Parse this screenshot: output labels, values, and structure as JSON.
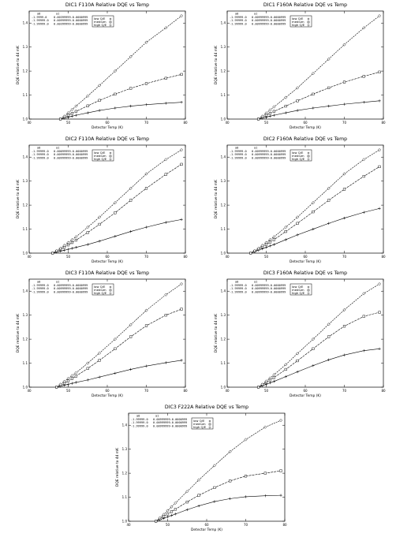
{
  "chart_data": [
    {
      "type": "scatter",
      "title": "DIC1 F110A Relative DQE vs Temp",
      "xlabel": "Detector Temp (K)",
      "ylabel": "DQE relative to 44 mK",
      "xlim": [
        40,
        80
      ],
      "ylim": [
        1.0,
        1.45
      ],
      "xticks": [
        "40",
        "50",
        "60",
        "70",
        "80"
      ],
      "yticks": [
        "1.0",
        "1.1",
        "1.2",
        "1.3",
        "1.4"
      ],
      "grid": false,
      "legend_position": "top",
      "table_headers": [
        "a0",
        "a1"
      ],
      "coef_rows": [
        [
          "-1.9999.0",
          "0.00399999-0.0000999",
          "low Q/E"
        ],
        [
          "-1.99999.0",
          "0.00999999-0.0000999",
          "medium"
        ],
        [
          "-1.99999.0",
          "0.00399999-0.0000999",
          "high Q/E"
        ]
      ],
      "series": [
        {
          "name": "low Q/E",
          "marker": "plus",
          "x": [
            48,
            49,
            50,
            51,
            52,
            55,
            58,
            62,
            66,
            70,
            75,
            79
          ],
          "y": [
            1.0,
            1.004,
            1.008,
            1.012,
            1.016,
            1.026,
            1.036,
            1.046,
            1.054,
            1.06,
            1.066,
            1.07
          ]
        },
        {
          "name": "medium",
          "marker": "square",
          "x": [
            48,
            49,
            50,
            51,
            52,
            55,
            58,
            62,
            66,
            70,
            75,
            79
          ],
          "y": [
            1.0,
            1.008,
            1.016,
            1.024,
            1.032,
            1.055,
            1.078,
            1.104,
            1.128,
            1.148,
            1.17,
            1.186
          ]
        },
        {
          "name": "high Q/E",
          "marker": "diamond",
          "x": [
            48,
            49,
            50,
            51,
            52,
            55,
            58,
            62,
            66,
            70,
            75,
            79
          ],
          "y": [
            1.0,
            1.012,
            1.026,
            1.04,
            1.054,
            1.096,
            1.14,
            1.2,
            1.26,
            1.32,
            1.38,
            1.43
          ]
        }
      ]
    },
    {
      "type": "scatter",
      "title": "DIC1 F160A Relative DQE vs Temp",
      "xlabel": "Detector Temp (K)",
      "ylabel": "DQE relative to 44 mK",
      "xlim": [
        40,
        80
      ],
      "ylim": [
        1.0,
        1.45
      ],
      "xticks": [
        "40",
        "50",
        "60",
        "70",
        "80"
      ],
      "yticks": [
        "1.0",
        "1.1",
        "1.2",
        "1.3",
        "1.4"
      ],
      "grid": false,
      "legend_position": "top",
      "table_headers": [
        "a0",
        "a1"
      ],
      "coef_rows": [
        [
          "-1.99999.0",
          "0.00999999-0.0000999",
          "low Q/E"
        ],
        [
          "-1.99999.0",
          "0.00999999-0.0000999",
          "medium"
        ],
        [
          "-1.99999.0",
          "0.00999999-0.0000999",
          "high Q/E"
        ]
      ],
      "series": [
        {
          "name": "low Q/E",
          "marker": "plus",
          "x": [
            48,
            49,
            50,
            51,
            52,
            55,
            58,
            62,
            66,
            70,
            75,
            79
          ],
          "y": [
            1.0,
            1.004,
            1.008,
            1.012,
            1.016,
            1.026,
            1.036,
            1.046,
            1.054,
            1.062,
            1.07,
            1.076
          ]
        },
        {
          "name": "medium",
          "marker": "square",
          "x": [
            48,
            49,
            50,
            51,
            52,
            55,
            58,
            62,
            66,
            70,
            75,
            79
          ],
          "y": [
            1.0,
            1.008,
            1.016,
            1.024,
            1.032,
            1.054,
            1.076,
            1.104,
            1.13,
            1.154,
            1.178,
            1.196
          ]
        },
        {
          "name": "high Q/E",
          "marker": "diamond",
          "x": [
            48,
            49,
            50,
            51,
            52,
            55,
            58,
            62,
            66,
            70,
            75,
            79
          ],
          "y": [
            1.0,
            1.012,
            1.025,
            1.038,
            1.051,
            1.09,
            1.13,
            1.19,
            1.25,
            1.31,
            1.38,
            1.43
          ]
        }
      ]
    },
    {
      "type": "scatter",
      "title": "DIC2 F110A Relative DQE vs Temp",
      "xlabel": "Detector Temp (K)",
      "ylabel": "DQE relative to 44 mK",
      "xlim": [
        40,
        80
      ],
      "ylim": [
        1.0,
        1.45
      ],
      "xticks": [
        "40",
        "50",
        "60",
        "70",
        "80"
      ],
      "yticks": [
        "1.0",
        "1.1",
        "1.2",
        "1.3",
        "1.4"
      ],
      "grid": false,
      "legend_position": "top",
      "table_headers": [
        "a0",
        "a1"
      ],
      "coef_rows": [
        [
          "-1.99999.0",
          "0.00099999-0.0000999",
          "low Q/E"
        ],
        [
          "-1.99999.0",
          "0.00999999-0.0000999",
          "medium"
        ],
        [
          "-1.99999.0",
          "0.00999999-0.0000999",
          "high Q/E"
        ]
      ],
      "series": [
        {
          "name": "low Q/E",
          "marker": "plus",
          "x": [
            46,
            47,
            48,
            49,
            50,
            51,
            52,
            55,
            58,
            62,
            66,
            70,
            75,
            79
          ],
          "y": [
            1.0,
            1.004,
            1.008,
            1.012,
            1.016,
            1.02,
            1.024,
            1.036,
            1.05,
            1.07,
            1.09,
            1.108,
            1.128,
            1.14
          ]
        },
        {
          "name": "medium",
          "marker": "square",
          "x": [
            46,
            47,
            48,
            49,
            50,
            51,
            52,
            55,
            58,
            62,
            66,
            70,
            75,
            79
          ],
          "y": [
            1.0,
            1.008,
            1.016,
            1.024,
            1.034,
            1.044,
            1.054,
            1.086,
            1.12,
            1.168,
            1.22,
            1.27,
            1.328,
            1.37
          ]
        },
        {
          "name": "high Q/E",
          "marker": "diamond",
          "x": [
            46,
            47,
            48,
            49,
            50,
            51,
            52,
            55,
            58,
            62,
            66,
            70,
            75,
            79
          ],
          "y": [
            1.0,
            1.01,
            1.02,
            1.032,
            1.044,
            1.056,
            1.068,
            1.108,
            1.15,
            1.21,
            1.27,
            1.33,
            1.39,
            1.43
          ]
        }
      ]
    },
    {
      "type": "scatter",
      "title": "DIC2 F160A Relative DQE vs Temp",
      "xlabel": "Detector Temp (K)",
      "ylabel": "DQE relative to 44 mK",
      "xlim": [
        40,
        80
      ],
      "ylim": [
        1.0,
        1.45
      ],
      "xticks": [
        "40",
        "50",
        "60",
        "70",
        "80"
      ],
      "yticks": [
        "1.0",
        "1.1",
        "1.2",
        "1.3",
        "1.4"
      ],
      "grid": false,
      "legend_position": "top",
      "table_headers": [
        "a0",
        "a1"
      ],
      "coef_rows": [
        [
          "-1.99999.0",
          "0.00999999-0.0000999",
          "low Q/E"
        ],
        [
          "-1.99999.0",
          "0.00999999-0.0000999",
          "medium"
        ],
        [
          "-1.99999.0",
          "0.00999999-0.0000999",
          "high Q/E"
        ]
      ],
      "series": [
        {
          "name": "low Q/E",
          "marker": "plus",
          "x": [
            46,
            47,
            48,
            49,
            50,
            51,
            52,
            55,
            58,
            62,
            66,
            70,
            75,
            79
          ],
          "y": [
            1.0,
            1.006,
            1.012,
            1.018,
            1.024,
            1.03,
            1.036,
            1.056,
            1.076,
            1.1,
            1.124,
            1.146,
            1.17,
            1.186
          ]
        },
        {
          "name": "medium",
          "marker": "square",
          "x": [
            46,
            47,
            48,
            49,
            50,
            51,
            52,
            55,
            58,
            62,
            66,
            70,
            75,
            79
          ],
          "y": [
            1.0,
            1.008,
            1.016,
            1.026,
            1.036,
            1.046,
            1.056,
            1.09,
            1.124,
            1.172,
            1.22,
            1.266,
            1.32,
            1.36
          ]
        },
        {
          "name": "high Q/E",
          "marker": "diamond",
          "x": [
            46,
            47,
            48,
            49,
            50,
            51,
            52,
            55,
            58,
            62,
            66,
            70,
            75,
            79
          ],
          "y": [
            1.0,
            1.01,
            1.02,
            1.032,
            1.044,
            1.056,
            1.068,
            1.108,
            1.15,
            1.21,
            1.27,
            1.33,
            1.39,
            1.43
          ]
        }
      ]
    },
    {
      "type": "scatter",
      "title": "DIC3 F110A Relative DQE vs Temp",
      "xlabel": "Detector Temp (K)",
      "ylabel": "DQE relative to 44 mK",
      "xlim": [
        40,
        80
      ],
      "ylim": [
        1.0,
        1.45
      ],
      "xticks": [
        "40",
        "50",
        "60",
        "70",
        "80"
      ],
      "yticks": [
        "1.0",
        "1.1",
        "1.2",
        "1.3",
        "1.4"
      ],
      "grid": false,
      "legend_position": "top",
      "table_headers": [
        "a0",
        "a1"
      ],
      "coef_rows": [
        [
          "-1.99999.0",
          "0.00999999-0.0000999",
          "low Q/E"
        ],
        [
          "-1.99999.0",
          "0.00999999-0.0000999",
          "medium"
        ],
        [
          "-1.99999.0",
          "0.00999999-0.0000999",
          "high Q/E"
        ]
      ],
      "series": [
        {
          "name": "low Q/E",
          "marker": "plus",
          "x": [
            47,
            48,
            49,
            50,
            51,
            52,
            55,
            58,
            62,
            66,
            70,
            75,
            79
          ],
          "y": [
            1.0,
            1.004,
            1.008,
            1.012,
            1.016,
            1.02,
            1.03,
            1.042,
            1.058,
            1.074,
            1.088,
            1.102,
            1.112
          ]
        },
        {
          "name": "medium",
          "marker": "square",
          "x": [
            47,
            48,
            49,
            50,
            51,
            52,
            55,
            58,
            62,
            66,
            70,
            75,
            79
          ],
          "y": [
            1.0,
            1.008,
            1.016,
            1.026,
            1.036,
            1.046,
            1.078,
            1.112,
            1.16,
            1.21,
            1.256,
            1.3,
            1.325
          ]
        },
        {
          "name": "high Q/E",
          "marker": "diamond",
          "x": [
            47,
            48,
            49,
            50,
            51,
            52,
            55,
            58,
            62,
            66,
            70,
            75,
            79
          ],
          "y": [
            1.0,
            1.012,
            1.024,
            1.036,
            1.048,
            1.06,
            1.1,
            1.142,
            1.2,
            1.26,
            1.32,
            1.385,
            1.43
          ]
        }
      ]
    },
    {
      "type": "scatter",
      "title": "DIC3 F160A Relative DQE vs Temp",
      "xlabel": "Detector Temp (K)",
      "ylabel": "DQE relative to 44 mK",
      "xlim": [
        40,
        80
      ],
      "ylim": [
        1.0,
        1.45
      ],
      "xticks": [
        "40",
        "50",
        "60",
        "70",
        "80"
      ],
      "yticks": [
        "1.0",
        "1.1",
        "1.2",
        "1.3",
        "1.4"
      ],
      "grid": false,
      "legend_position": "top",
      "table_headers": [
        "a0",
        "a1"
      ],
      "coef_rows": [
        [
          "-1.99999.0",
          "0.00999999-0.0000999",
          "low Q/E"
        ],
        [
          "-1.99999.0",
          "0.00999999-0.0000999",
          "medium"
        ],
        [
          "-1.99999.0",
          "0.00999999-0.0000999",
          "high Q/E"
        ]
      ],
      "series": [
        {
          "name": "low Q/E",
          "marker": "plus",
          "x": [
            48,
            49,
            50,
            51,
            52,
            55,
            58,
            62,
            66,
            70,
            75,
            79
          ],
          "y": [
            1.0,
            1.006,
            1.012,
            1.018,
            1.024,
            1.044,
            1.064,
            1.09,
            1.114,
            1.134,
            1.152,
            1.16
          ]
        },
        {
          "name": "medium",
          "marker": "square",
          "x": [
            48,
            49,
            50,
            51,
            52,
            55,
            58,
            62,
            66,
            70,
            75,
            79
          ],
          "y": [
            1.0,
            1.01,
            1.02,
            1.03,
            1.04,
            1.074,
            1.11,
            1.16,
            1.21,
            1.254,
            1.295,
            1.312
          ]
        },
        {
          "name": "high Q/E",
          "marker": "diamond",
          "x": [
            48,
            49,
            50,
            51,
            52,
            55,
            58,
            62,
            66,
            70,
            75,
            79
          ],
          "y": [
            1.0,
            1.012,
            1.025,
            1.038,
            1.052,
            1.094,
            1.14,
            1.2,
            1.262,
            1.322,
            1.39,
            1.43
          ]
        }
      ]
    },
    {
      "type": "scatter",
      "title": "DIC3 F222A Relative DQE vs Temp",
      "xlabel": "Detector Temp (K)",
      "ylabel": "DQE relative to 44 mK",
      "xlim": [
        40,
        80
      ],
      "ylim": [
        1.0,
        1.45
      ],
      "xticks": [
        "40",
        "50",
        "60",
        "70",
        "80"
      ],
      "yticks": [
        "1.0",
        "1.1",
        "1.2",
        "1.3",
        "1.4"
      ],
      "grid": false,
      "legend_position": "top",
      "table_headers": [
        "a0",
        "a1"
      ],
      "coef_rows": [
        [
          "-1.99999.0",
          "0.00999999-0.0000999",
          "low Q/E"
        ],
        [
          "-1.99999.0",
          "0.00999999-0.0000999",
          "medium"
        ],
        [
          "-1.99999.0",
          "0.00999999-0.0000999",
          "high Q/E"
        ]
      ],
      "series": [
        {
          "name": "low Q/E",
          "marker": "plus",
          "x": [
            47,
            48,
            49,
            50,
            51,
            52,
            55,
            58,
            62,
            66,
            70,
            75,
            79
          ],
          "y": [
            1.0,
            1.006,
            1.012,
            1.018,
            1.024,
            1.03,
            1.048,
            1.064,
            1.082,
            1.094,
            1.102,
            1.106,
            1.108
          ]
        },
        {
          "name": "medium",
          "marker": "square",
          "x": [
            47,
            48,
            49,
            50,
            51,
            52,
            55,
            58,
            62,
            66,
            70,
            75,
            79
          ],
          "y": [
            1.0,
            1.01,
            1.02,
            1.03,
            1.04,
            1.05,
            1.08,
            1.108,
            1.14,
            1.168,
            1.188,
            1.2,
            1.21
          ]
        },
        {
          "name": "high Q/E",
          "marker": "diamond",
          "x": [
            47,
            48,
            49,
            50,
            51,
            52,
            55,
            58,
            62,
            66,
            70,
            75,
            79
          ],
          "y": [
            1.0,
            1.014,
            1.028,
            1.044,
            1.06,
            1.076,
            1.124,
            1.172,
            1.232,
            1.29,
            1.34,
            1.392,
            1.42
          ]
        }
      ]
    }
  ]
}
